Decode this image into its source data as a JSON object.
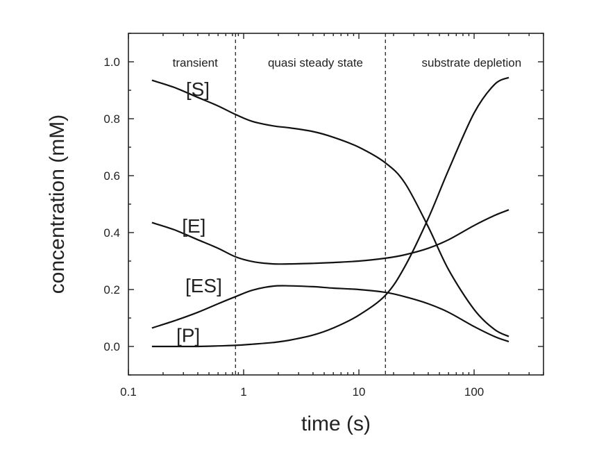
{
  "chart_data": {
    "type": "line",
    "xlabel": "time (s)",
    "ylabel": "concentration (mM)",
    "xscale": "log",
    "xlim": [
      0.1,
      400
    ],
    "ylim": [
      -0.1,
      1.1
    ],
    "grid": false,
    "x_ticks": [
      {
        "value": 0.1,
        "label": "0.1"
      },
      {
        "value": 1,
        "label": "1"
      },
      {
        "value": 10,
        "label": "10"
      },
      {
        "value": 100,
        "label": "100"
      }
    ],
    "y_ticks": [
      {
        "value": 0.0,
        "label": "0.0"
      },
      {
        "value": 0.2,
        "label": "0.2"
      },
      {
        "value": 0.4,
        "label": "0.4"
      },
      {
        "value": 0.6,
        "label": "0.6"
      },
      {
        "value": 0.8,
        "label": "0.8"
      },
      {
        "value": 1.0,
        "label": "1.0"
      }
    ],
    "dividers": [
      0.85,
      17
    ],
    "regions": [
      {
        "label": "transient",
        "x": 0.38
      },
      {
        "label": "quasi steady state",
        "x": 4.2
      },
      {
        "label": "substrate depletion",
        "x": 95
      }
    ],
    "series": [
      {
        "name": "[S]",
        "label_at": [
          0.4,
          0.905
        ],
        "x": [
          0.16,
          0.25,
          0.4,
          0.6,
          0.85,
          1.2,
          1.8,
          2.5,
          4,
          6,
          10,
          17,
          25,
          40,
          60,
          100,
          150,
          200
        ],
        "y": [
          0.935,
          0.91,
          0.875,
          0.845,
          0.815,
          0.79,
          0.775,
          0.768,
          0.755,
          0.735,
          0.7,
          0.645,
          0.575,
          0.42,
          0.27,
          0.13,
          0.06,
          0.035
        ]
      },
      {
        "name": "[E]",
        "label_at": [
          0.37,
          0.425
        ],
        "x": [
          0.16,
          0.25,
          0.4,
          0.6,
          0.85,
          1.2,
          1.8,
          2.5,
          4,
          6,
          10,
          17,
          25,
          40,
          60,
          100,
          150,
          200
        ],
        "y": [
          0.435,
          0.41,
          0.375,
          0.345,
          0.315,
          0.298,
          0.29,
          0.29,
          0.292,
          0.295,
          0.3,
          0.31,
          0.322,
          0.345,
          0.375,
          0.425,
          0.46,
          0.48
        ]
      },
      {
        "name": "[ES]",
        "label_at": [
          0.45,
          0.215
        ],
        "x": [
          0.16,
          0.25,
          0.4,
          0.6,
          0.85,
          1.2,
          1.8,
          2.5,
          4,
          6,
          10,
          17,
          25,
          40,
          60,
          100,
          150,
          200
        ],
        "y": [
          0.065,
          0.09,
          0.12,
          0.15,
          0.175,
          0.198,
          0.212,
          0.213,
          0.21,
          0.205,
          0.2,
          0.19,
          0.175,
          0.15,
          0.12,
          0.07,
          0.035,
          0.017
        ]
      },
      {
        "name": "[P]",
        "label_at": [
          0.33,
          0.04
        ],
        "x": [
          0.16,
          0.25,
          0.4,
          0.6,
          0.85,
          1.2,
          1.8,
          2.5,
          4,
          6,
          10,
          17,
          25,
          40,
          60,
          100,
          150,
          200
        ],
        "y": [
          0.0,
          0.0,
          0.0,
          0.002,
          0.004,
          0.008,
          0.014,
          0.022,
          0.04,
          0.065,
          0.11,
          0.18,
          0.28,
          0.45,
          0.62,
          0.82,
          0.92,
          0.945
        ]
      }
    ]
  }
}
